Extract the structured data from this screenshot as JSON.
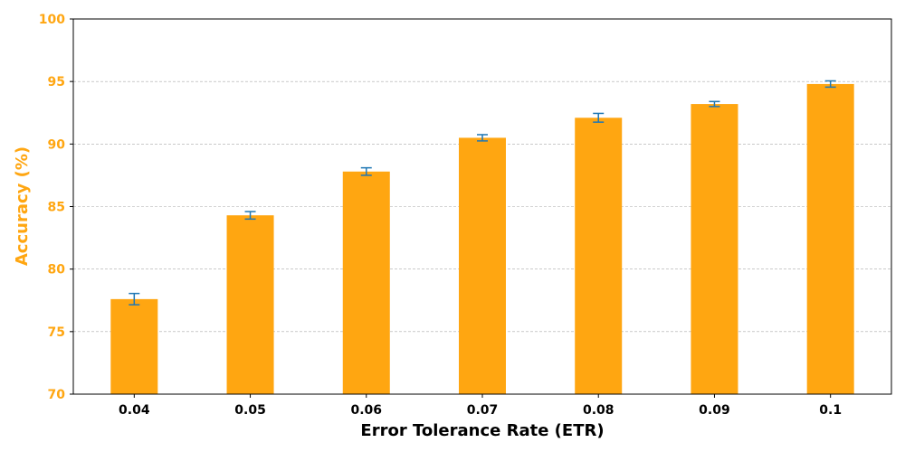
{
  "chart_data": {
    "type": "bar",
    "categories": [
      "0.04",
      "0.05",
      "0.06",
      "0.07",
      "0.08",
      "0.09",
      "0.1"
    ],
    "values": [
      77.6,
      84.3,
      87.8,
      90.5,
      92.1,
      93.2,
      94.8
    ],
    "errors": [
      0.45,
      0.3,
      0.3,
      0.25,
      0.35,
      0.2,
      0.25
    ],
    "xlabel": "Error Tolerance Rate (ETR)",
    "ylabel": "Accuracy (%)",
    "ylim": [
      70,
      100
    ],
    "yticks": [
      70,
      75,
      80,
      85,
      90,
      95,
      100
    ],
    "grid": "horizontal dashed",
    "colors": {
      "bar": "#FFA611",
      "error_bar": "#1F77B4",
      "ylabel": "#FFA611",
      "ytick": "#FFA611",
      "grid": "#AAAAAA"
    }
  }
}
